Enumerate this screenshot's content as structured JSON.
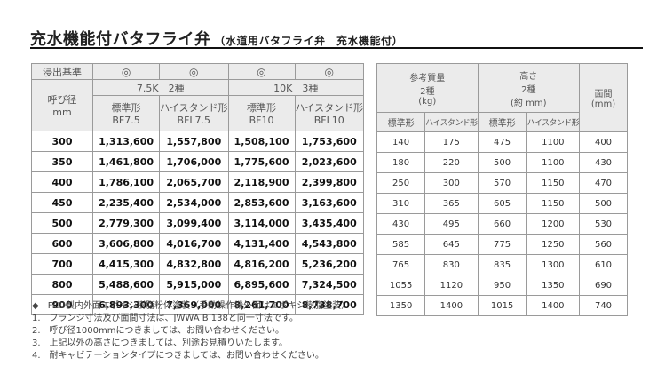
{
  "title": {
    "main": "充水機能付バタフライ弁",
    "sub": "（水道用バタフライ弁　充水機能付）"
  },
  "price_table": {
    "std_label": "浸出基準",
    "marks": [
      "◎",
      "◎",
      "◎",
      "◎"
    ],
    "size_label_line1": "呼び径",
    "size_label_line2": "mm",
    "groups": [
      "7.5K　2種",
      "10K　3種"
    ],
    "models": [
      {
        "name": "標準形",
        "code": "BF7.5"
      },
      {
        "name": "ハイスタンド形",
        "code": "BFL7.5"
      },
      {
        "name": "標準形",
        "code": "BF10"
      },
      {
        "name": "ハイスタンド形",
        "code": "BFL10"
      }
    ],
    "rows": [
      {
        "size": "300",
        "prices": [
          "1,313,600",
          "1,557,800",
          "1,508,100",
          "1,753,600"
        ]
      },
      {
        "size": "350",
        "prices": [
          "1,461,800",
          "1,706,000",
          "1,775,600",
          "2,023,600"
        ]
      },
      {
        "size": "400",
        "prices": [
          "1,786,100",
          "2,065,700",
          "2,118,900",
          "2,399,800"
        ]
      },
      {
        "size": "450",
        "prices": [
          "2,235,400",
          "2,534,000",
          "2,853,600",
          "3,163,600"
        ]
      },
      {
        "size": "500",
        "prices": [
          "2,779,300",
          "3,099,400",
          "3,114,000",
          "3,435,400"
        ]
      },
      {
        "size": "600",
        "prices": [
          "3,606,800",
          "4,016,700",
          "4,131,400",
          "4,543,800"
        ]
      },
      {
        "size": "700",
        "prices": [
          "4,415,300",
          "4,832,800",
          "4,816,200",
          "5,236,200"
        ]
      },
      {
        "size": "800",
        "prices": [
          "5,488,600",
          "5,915,000",
          "6,895,600",
          "7,324,500"
        ]
      },
      {
        "size": "900",
        "prices": [
          "6,893,300",
          "7,369,000",
          "8,261,700",
          "8,738,700"
        ]
      }
    ]
  },
  "spec_table": {
    "mass_label": [
      "参考質量",
      "2種",
      "(kg)"
    ],
    "height_label": [
      "高さ",
      "2種",
      "(約 mm)"
    ],
    "face_label": [
      "面間",
      "(mm)"
    ],
    "sub_headers": [
      "標準形",
      "ハイスタンド形",
      "標準形",
      "ハイスタンド形"
    ],
    "rows": [
      [
        "140",
        "175",
        "475",
        "1100",
        "400"
      ],
      [
        "180",
        "220",
        "500",
        "1100",
        "430"
      ],
      [
        "250",
        "300",
        "570",
        "1150",
        "470"
      ],
      [
        "310",
        "365",
        "605",
        "1150",
        "500"
      ],
      [
        "430",
        "495",
        "660",
        "1200",
        "530"
      ],
      [
        "585",
        "645",
        "775",
        "1250",
        "560"
      ],
      [
        "765",
        "830",
        "835",
        "1300",
        "610"
      ],
      [
        "1055",
        "1120",
        "950",
        "1350",
        "690"
      ],
      [
        "1350",
        "1400",
        "1015",
        "1400",
        "740"
      ]
    ]
  },
  "notes": [
    "◆　FCD製内外面エポキシ樹脂粉体塗装（手動操作機外面はエポキシ樹脂塗装）",
    "1.　フランジ寸法及び面間寸法は、JWWA B 138と同一寸法です。",
    "2.　呼び径1000mmにつきましては、お問い合わせください。",
    "3.　上記以外の高さにつきましては、別途お見積りいたします。",
    "4.　耐キャビテーションタイプにつきましては、お問い合わせください。"
  ]
}
